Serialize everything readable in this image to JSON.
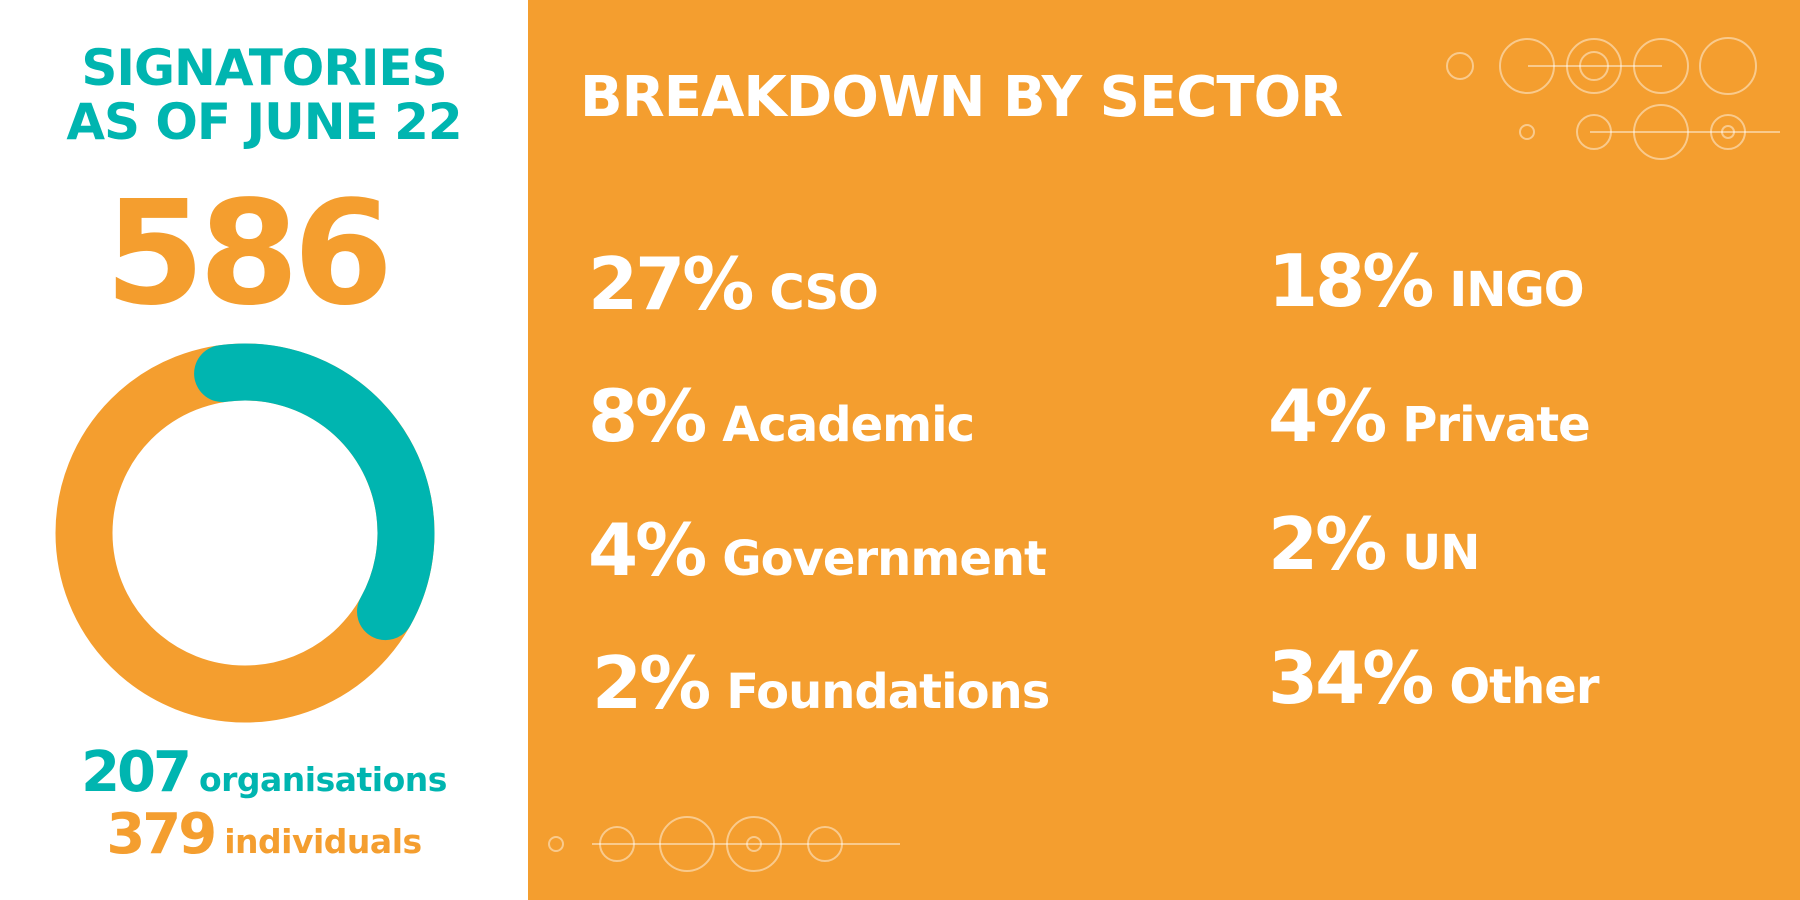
{
  "colors": {
    "orange": "#f49e2f",
    "teal": "#00b5b0",
    "white": "#ffffff"
  },
  "signatories": {
    "title_line1": "SIGNATORIES",
    "title_line2": "AS OF JUNE 22",
    "total": "586",
    "organisations_count": "207",
    "organisations_label": "organisations",
    "individuals_count": "379",
    "individuals_label": "individuals"
  },
  "sector_heading": "BREAKDOWN BY SECTOR",
  "chart_data": [
    {
      "type": "pie",
      "style": "donut",
      "categories": [
        "organisations",
        "individuals"
      ],
      "values": [
        207,
        379
      ],
      "total": 586,
      "colors": [
        "#00b5b0",
        "#f49e2f"
      ]
    },
    {
      "type": "table",
      "title": "BREAKDOWN BY SECTOR",
      "unit": "%",
      "sectors": [
        {
          "pct": "27%",
          "label": "CSO",
          "value": 27
        },
        {
          "pct": "8%",
          "label": "Academic",
          "value": 8
        },
        {
          "pct": "4%",
          "label": "Government",
          "value": 4
        },
        {
          "pct": "2%",
          "label": "Foundations",
          "value": 2
        },
        {
          "pct": "18%",
          "label": "INGO",
          "value": 18
        },
        {
          "pct": "4%",
          "label": "Private",
          "value": 4
        },
        {
          "pct": "2%",
          "label": "UN",
          "value": 2
        },
        {
          "pct": "34%",
          "label": "Other",
          "value": 34
        }
      ]
    }
  ]
}
